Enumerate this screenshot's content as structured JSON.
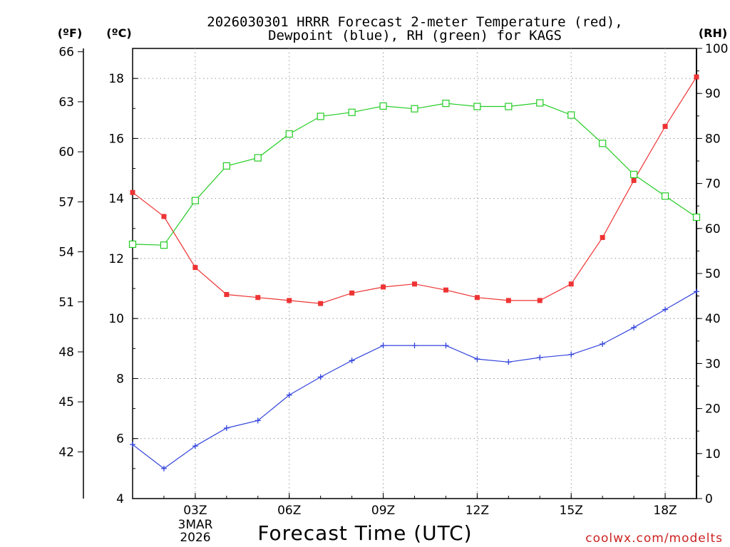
{
  "chart_data": {
    "type": "line",
    "title_line1": "2026030301 HRRR Forecast 2-meter Temperature (red),",
    "title_line2": "Dewpoint (blue), RH (green) for KAGS",
    "xlabel": "Forecast Time (UTC)",
    "credit": "coolwx.com/modelts",
    "units": {
      "fahrenheit": "(ºF)",
      "celsius": "(ºC)",
      "rh": "(RH)"
    },
    "x_hours": [
      1,
      2,
      3,
      4,
      5,
      6,
      7,
      8,
      9,
      10,
      11,
      12,
      13,
      14,
      15,
      16,
      17,
      18,
      19
    ],
    "xlim": [
      1,
      19
    ],
    "x_ticks": [
      {
        "hour": 3,
        "label": "03Z"
      },
      {
        "hour": 6,
        "label": "06Z"
      },
      {
        "hour": 9,
        "label": "09Z"
      },
      {
        "hour": 12,
        "label": "12Z"
      },
      {
        "hour": 15,
        "label": "15Z"
      },
      {
        "hour": 18,
        "label": "18Z"
      }
    ],
    "date_label_line1": "3MAR",
    "date_label_line2": "2026",
    "celsius_axis": {
      "ylim": [
        4,
        19
      ],
      "ticks": [
        4,
        6,
        8,
        10,
        12,
        14,
        16,
        18
      ]
    },
    "fahrenheit_ticks": [
      42,
      45,
      48,
      51,
      54,
      57,
      60,
      63,
      66
    ],
    "rh_axis": {
      "ylim": [
        0,
        100
      ],
      "ticks": [
        0,
        10,
        20,
        30,
        40,
        50,
        60,
        70,
        80,
        90,
        100
      ]
    },
    "series": [
      {
        "name": "2-meter Temperature",
        "axis": "celsius",
        "color": "#ee3333",
        "marker": "filled-square",
        "values": [
          14.2,
          13.4,
          11.7,
          10.8,
          10.7,
          10.6,
          10.5,
          10.85,
          11.05,
          11.15,
          10.95,
          10.7,
          10.6,
          10.6,
          11.15,
          12.7,
          14.6,
          16.4,
          18.05
        ]
      },
      {
        "name": "Dewpoint",
        "axis": "celsius",
        "color": "#3344dd",
        "marker": "plus",
        "values": [
          5.8,
          5.0,
          5.75,
          6.35,
          6.6,
          7.45,
          8.05,
          8.6,
          9.1,
          9.1,
          9.1,
          8.65,
          8.55,
          8.7,
          8.8,
          9.15,
          9.7,
          10.3,
          10.9
        ]
      },
      {
        "name": "RH",
        "axis": "rh",
        "color": "#22cc22",
        "marker": "open-square",
        "values": [
          56.5,
          56.3,
          66.2,
          73.9,
          75.7,
          81.0,
          84.9,
          85.8,
          87.2,
          86.6,
          87.8,
          87.1,
          87.1,
          87.9,
          85.2,
          78.9,
          72.0,
          67.2,
          62.5
        ]
      }
    ]
  }
}
